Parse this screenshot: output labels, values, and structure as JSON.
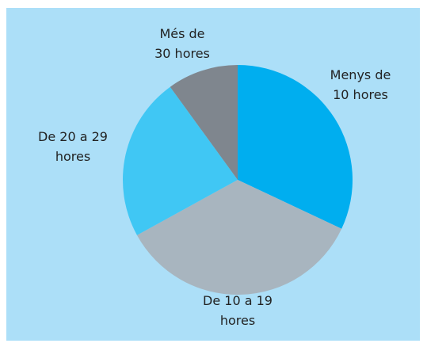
{
  "chart_data": {
    "type": "pie",
    "categories": [
      "Menys de 10 hores",
      "De 10 a 19 hores",
      "De 20 a 29 hores",
      "Més de 30 hores"
    ],
    "values": [
      32,
      35,
      23,
      10
    ],
    "colors": [
      "#00aeef",
      "#a8b5bf",
      "#40c7f4",
      "#7f868e"
    ],
    "start_angle": 0,
    "direction": "clockwise"
  }
}
